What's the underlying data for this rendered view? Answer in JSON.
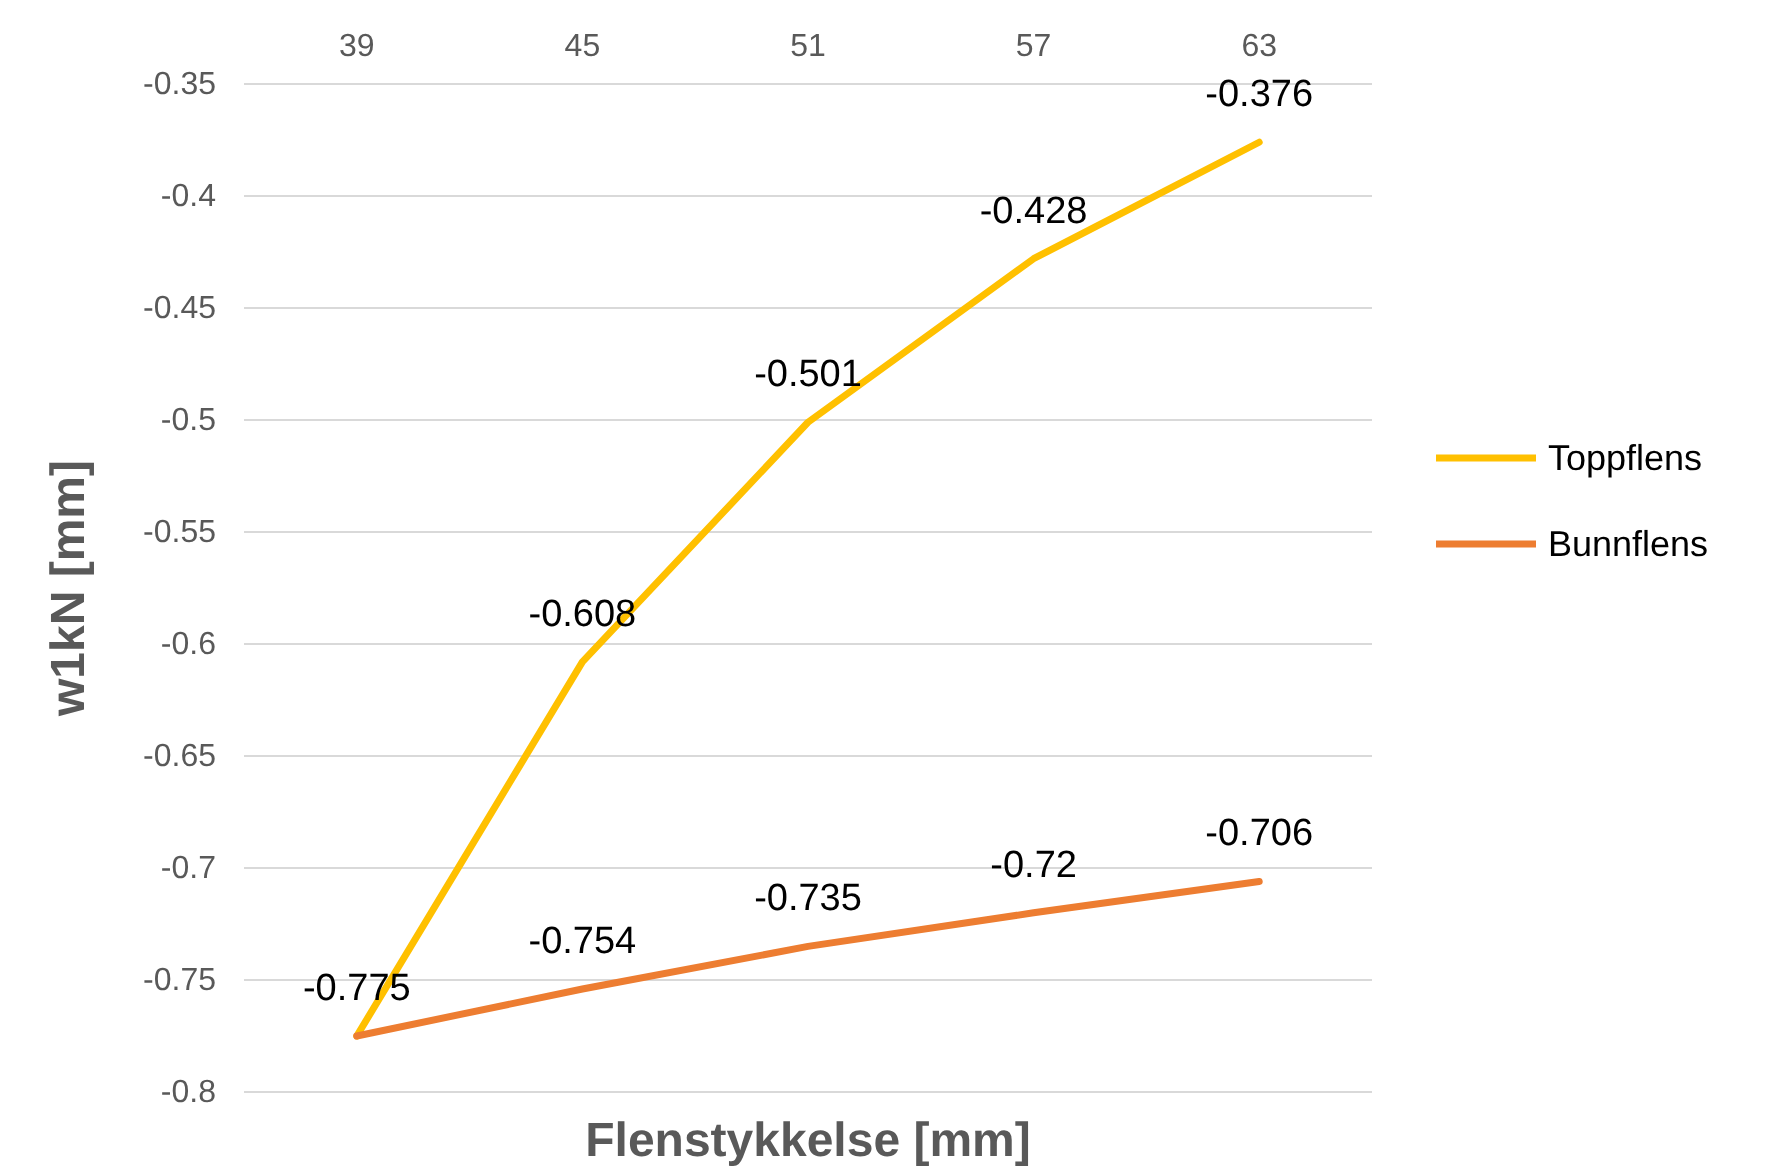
{
  "chart_data": {
    "type": "line",
    "xlabel": "Flenstykkelse [mm]",
    "ylabel": "w1kN [mm]",
    "categories": [
      "39",
      "45",
      "51",
      "57",
      "63"
    ],
    "series": [
      {
        "name": "Toppflens",
        "color": "#ffc000",
        "values": [
          -0.775,
          -0.608,
          -0.501,
          -0.428,
          -0.376
        ],
        "value_labels": [
          "-0.775",
          "-0.608",
          "-0.501",
          "-0.428",
          "-0.376"
        ]
      },
      {
        "name": "Bunnflens",
        "color": "#ed7d31",
        "values": [
          -0.775,
          -0.754,
          -0.735,
          -0.72,
          -0.706
        ],
        "value_labels": [
          null,
          "-0.754",
          "-0.735",
          "-0.72",
          "-0.706"
        ]
      }
    ],
    "ylim": [
      -0.8,
      -0.35
    ],
    "yticks": [
      -0.8,
      -0.75,
      -0.7,
      -0.65,
      -0.6,
      -0.55,
      -0.5,
      -0.45,
      -0.4,
      -0.35
    ],
    "grid": "y",
    "legend": "right",
    "marker": "none",
    "line_style": "solid"
  }
}
